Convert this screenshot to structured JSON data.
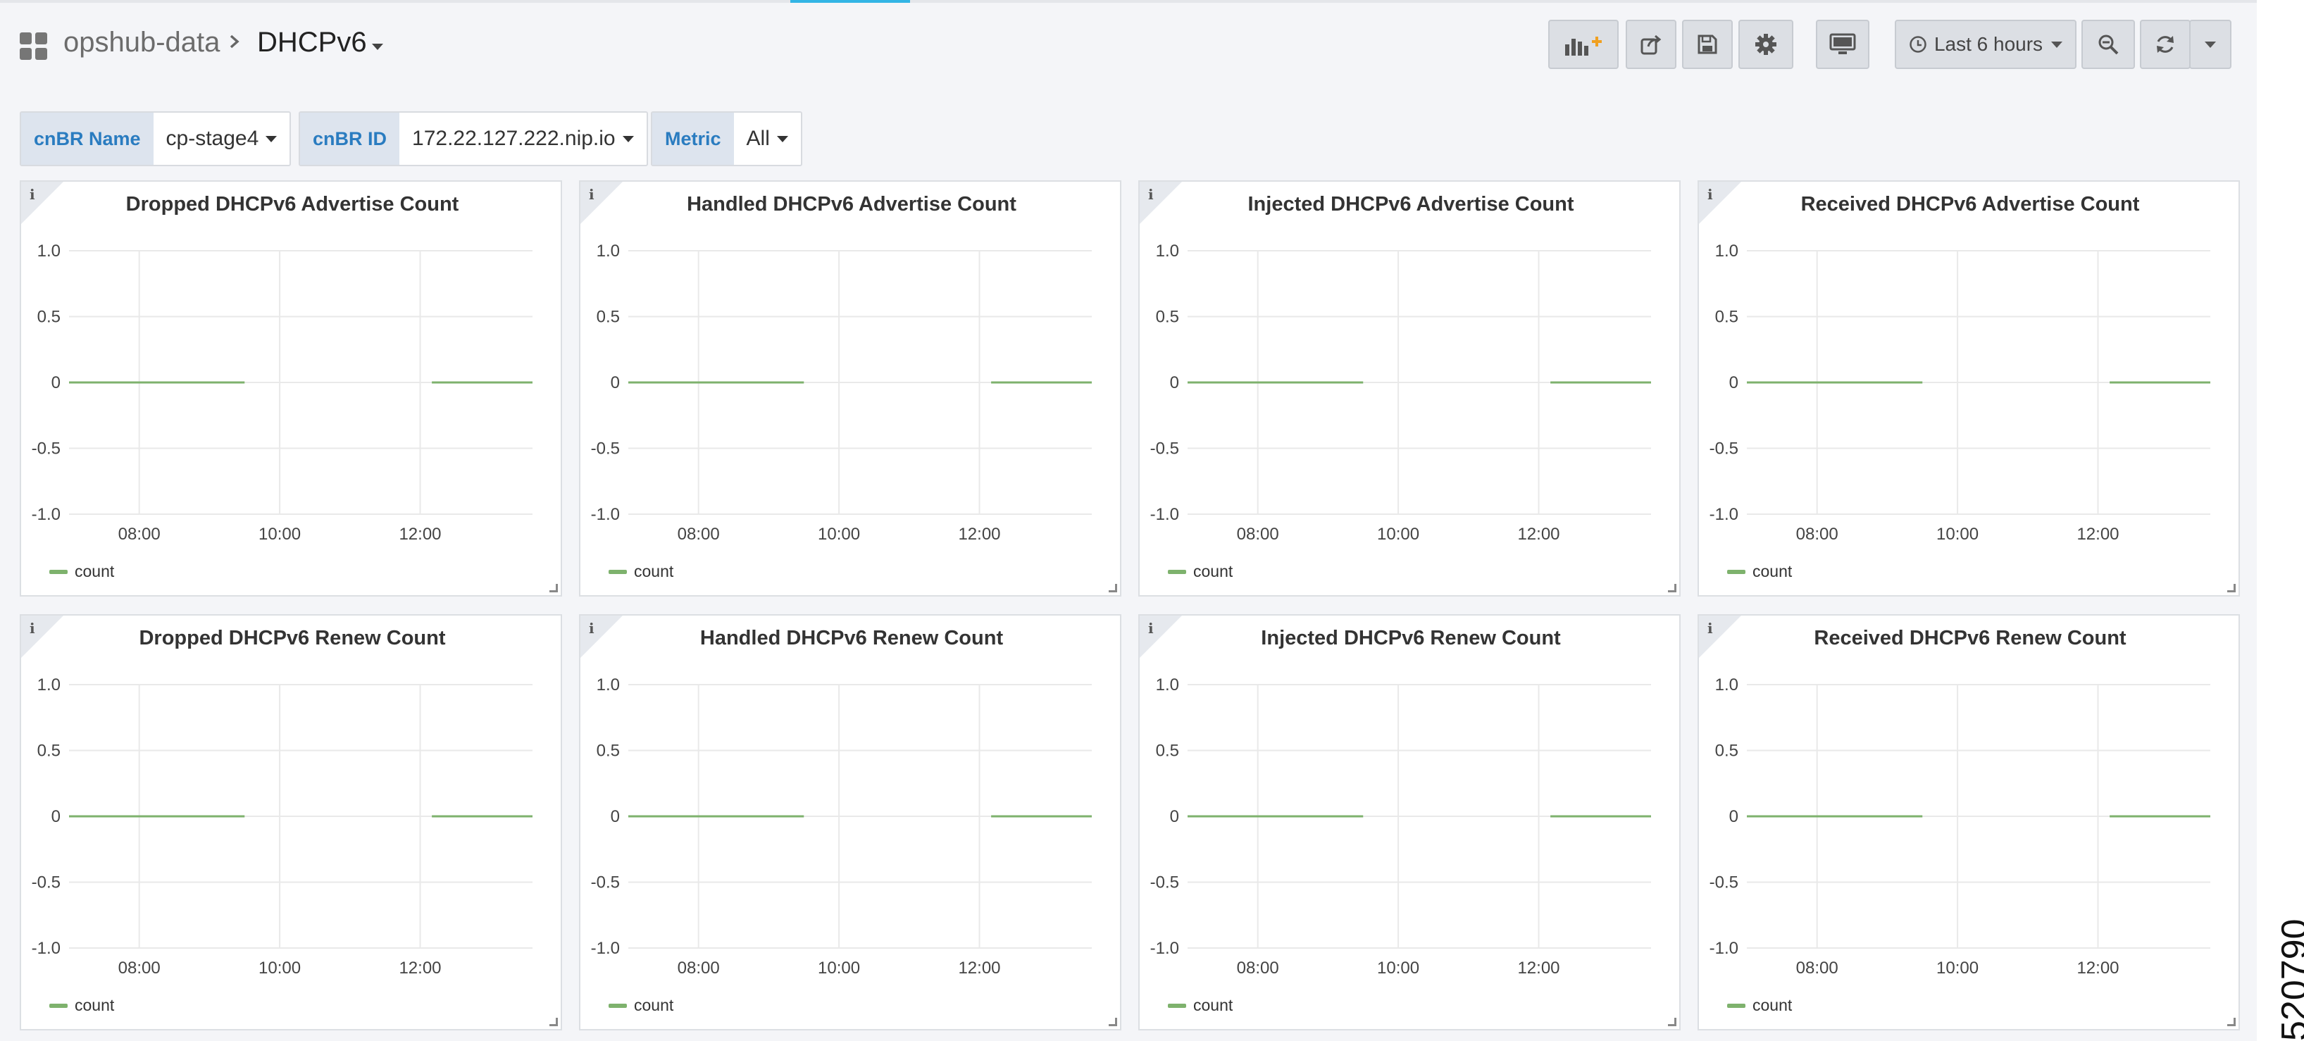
{
  "breadcrumb": {
    "folder": "opshub-data",
    "dashboard": "DHCPv6"
  },
  "toolbar": {
    "time_range": "Last 6 hours",
    "icons": [
      "add-panel-icon",
      "share-icon",
      "save-icon",
      "settings-icon",
      "tv-mode-icon",
      "clock-icon",
      "zoom-out-icon",
      "refresh-icon",
      "caret-down-icon"
    ]
  },
  "variables": [
    {
      "label": "cnBR Name",
      "value": "cp-stage4"
    },
    {
      "label": "cnBR ID",
      "value": "172.22.127.222.nip.io"
    },
    {
      "label": "Metric",
      "value": "All"
    }
  ],
  "colors": {
    "series": "#7eb26d",
    "label_accent": "#2a7cc0",
    "top_accent": "#33b5e5"
  },
  "panels": [
    {
      "title": "Dropped DHCPv6 Advertise Count"
    },
    {
      "title": "Handled DHCPv6 Advertise Count"
    },
    {
      "title": "Injected DHCPv6 Advertise Count"
    },
    {
      "title": "Received DHCPv6 Advertise Count"
    },
    {
      "title": "Dropped DHCPv6 Renew Count"
    },
    {
      "title": "Handled DHCPv6 Renew Count"
    },
    {
      "title": "Injected DHCPv6 Renew Count"
    },
    {
      "title": "Received DHCPv6 Renew Count"
    }
  ],
  "chart_data": {
    "type": "line",
    "y_ticks": [
      "1.0",
      "0.5",
      "0",
      "-0.5",
      "-1.0"
    ],
    "ylim": [
      -1,
      1
    ],
    "x_ticks": [
      "08:00",
      "10:00",
      "12:00"
    ],
    "xlim": [
      "07:00",
      "13:36"
    ],
    "series": [
      {
        "name": "count",
        "segments": [
          {
            "x": [
              "07:00",
              "09:30"
            ],
            "y": [
              0,
              0
            ]
          },
          {
            "x": [
              "12:10",
              "13:36"
            ],
            "y": [
              0,
              0
            ]
          }
        ]
      }
    ],
    "grid": true,
    "legend": "bottom-left"
  },
  "figure_number": "520790"
}
